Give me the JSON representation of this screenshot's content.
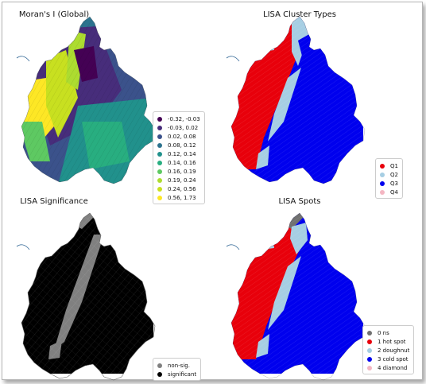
{
  "panels": [
    {
      "title": "Moran's I (Global)",
      "legend": [
        {
          "label": "-0.32, -0.03",
          "color": "#440154"
        },
        {
          "label": "-0.03,  0.02",
          "color": "#472d7b"
        },
        {
          "label": "0.02,  0.08",
          "color": "#3b528b"
        },
        {
          "label": "0.08,  0.12",
          "color": "#2c728e"
        },
        {
          "label": "0.12,  0.14",
          "color": "#21918c"
        },
        {
          "label": "0.14,  0.16",
          "color": "#28ae80"
        },
        {
          "label": "0.16,  0.19",
          "color": "#5ec962"
        },
        {
          "label": "0.19,  0.24",
          "color": "#addc30"
        },
        {
          "label": "0.24,  0.56",
          "color": "#c8e020"
        },
        {
          "label": "0.56,  1.73",
          "color": "#fde725"
        }
      ]
    },
    {
      "title": "LISA Cluster Types",
      "legend": [
        {
          "label": "Q1",
          "color": "#e8000b"
        },
        {
          "label": "Q2",
          "color": "#a6cee3"
        },
        {
          "label": "Q3",
          "color": "#0000ee"
        },
        {
          "label": "Q4",
          "color": "#f4b6c2"
        }
      ]
    },
    {
      "title": "LISA Significance",
      "legend": [
        {
          "label": "non-sig.",
          "color": "#808080"
        },
        {
          "label": "significant",
          "color": "#000000"
        }
      ]
    },
    {
      "title": "LISA Spots",
      "legend": [
        {
          "label": "0 ns",
          "color": "#707070"
        },
        {
          "label": "1 hot spot",
          "color": "#e8000b"
        },
        {
          "label": "2 doughnut",
          "color": "#a6cee3"
        },
        {
          "label": "3 cold spot",
          "color": "#0000ee"
        },
        {
          "label": "4 diamond",
          "color": "#f4b6c2"
        }
      ]
    }
  ]
}
